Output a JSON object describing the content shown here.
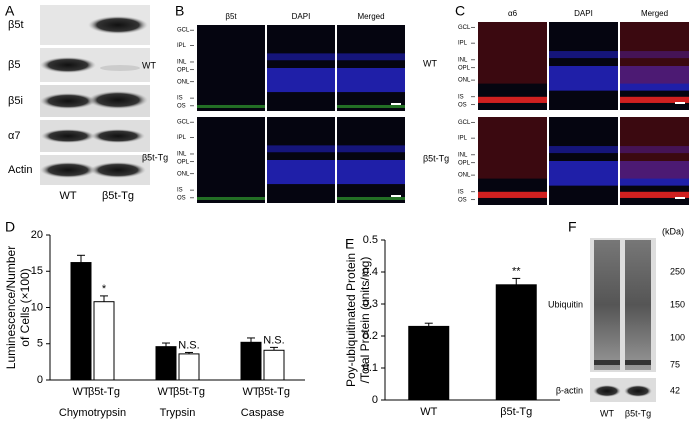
{
  "panel_labels": [
    "A",
    "B",
    "C",
    "D",
    "E",
    "F"
  ],
  "blot_a": {
    "rows": [
      "β5t",
      "β5",
      "β5i",
      "α7",
      "Actin"
    ],
    "lanes": [
      "WT",
      "β5t-Tg"
    ]
  },
  "retina_b": {
    "columns": [
      "β5t",
      "DAPI",
      "Merged"
    ],
    "rows": [
      "WT",
      "β5t-Tg"
    ],
    "layers": [
      "GCL",
      "IPL",
      "INL",
      "OPL",
      "ONL",
      "IS",
      "OS"
    ]
  },
  "retina_c": {
    "columns": [
      "α6",
      "DAPI",
      "Merged"
    ],
    "rows": [
      "WT",
      "β5t-Tg"
    ],
    "layers": [
      "GCL",
      "IPL",
      "INL",
      "OPL",
      "ONL",
      "IS",
      "OS"
    ]
  },
  "chart_data": [
    {
      "type": "bar",
      "y_label": [
        "Luminescence/Number",
        "of Cells (×100)"
      ],
      "categories": [
        "Chymotrypsin",
        "Trypsin",
        "Caspase"
      ],
      "series": [
        {
          "name": "WT",
          "color": "#000000",
          "values": [
            16.2,
            4.6,
            5.2
          ],
          "errors": [
            1.0,
            0.5,
            0.6
          ]
        },
        {
          "name": "β5t-Tg",
          "color": "#ffffff",
          "values": [
            10.8,
            3.6,
            4.1
          ],
          "errors": [
            0.8,
            0.2,
            0.4
          ],
          "annotations": [
            "*",
            "N.S.",
            "N.S."
          ]
        }
      ],
      "ylim": [
        0,
        20
      ],
      "yticks": [
        0,
        5,
        10,
        15,
        20
      ]
    },
    {
      "type": "bar",
      "y_label": [
        "Poy-ubiquitinated Protein",
        "/Total Protein (units/mg)"
      ],
      "categories": [
        "WT",
        "β5t-Tg"
      ],
      "values": [
        0.23,
        0.36
      ],
      "errors": [
        0.01,
        0.02
      ],
      "annotations": [
        null,
        "**"
      ],
      "color": "#000000",
      "ylim": [
        0,
        0.5
      ],
      "yticks": [
        0,
        0.1,
        0.2,
        0.3,
        0.4,
        0.5
      ]
    }
  ],
  "blot_f": {
    "unit": "(kDa)",
    "markers": [
      250,
      150,
      100,
      75
    ],
    "actin_marker": 42,
    "rows": [
      "Ubiquitin",
      "β-actin"
    ],
    "lanes": [
      "WT",
      "β5t-Tg"
    ]
  }
}
